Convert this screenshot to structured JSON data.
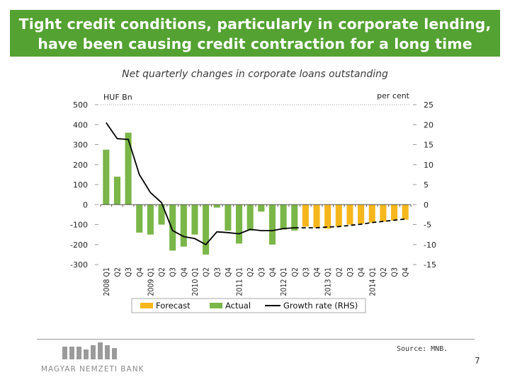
{
  "slide": {
    "title_line1": "Tight credit conditions, particularly in corporate lending,",
    "title_line2": "have been causing credit contraction for a long time",
    "chart_title": "Net quarterly changes in corporate loans outstanding",
    "source": "Source: MNB.",
    "page_number": "7",
    "bank_name": "MAGYAR NEMZETI BANK"
  },
  "colors": {
    "title_bg": "#54a232",
    "actual": "#7ab648",
    "forecast": "#f5b71b",
    "growth_line": "#000000"
  },
  "chart_data": {
    "type": "bar",
    "left_axis_unit": "HUF Bn",
    "right_axis_unit": "per cent",
    "ylim": [
      -300,
      500
    ],
    "y2lim": [
      -15,
      25
    ],
    "yticks": [
      "500",
      "400",
      "300",
      "200",
      "100",
      "0",
      "-100",
      "-200",
      "-300"
    ],
    "y2ticks": [
      "25",
      "20",
      "15",
      "10",
      "5",
      "0",
      "-5",
      "-10",
      "-15"
    ],
    "categories": [
      "2008 Q1",
      "Q2",
      "Q3",
      "Q4",
      "2009 Q1",
      "Q2",
      "Q3",
      "Q4",
      "2010 Q1",
      "Q2",
      "Q3",
      "Q4",
      "2011 Q1",
      "Q2",
      "Q3",
      "Q4",
      "2012 Q1",
      "Q2",
      "Q3",
      "Q4",
      "2013 Q1",
      "Q2",
      "Q3",
      "Q4",
      "2014 Q1",
      "Q2",
      "Q3",
      "Q4"
    ],
    "series": [
      {
        "name": "Actual",
        "type": "bar",
        "values": [
          275,
          140,
          360,
          -140,
          -150,
          -100,
          -230,
          -210,
          -150,
          -250,
          -15,
          -130,
          -195,
          -130,
          -35,
          -200,
          -125,
          -130,
          null,
          null,
          null,
          null,
          null,
          null,
          null,
          null,
          null,
          null
        ]
      },
      {
        "name": "Forecast",
        "type": "bar",
        "values": [
          null,
          null,
          null,
          null,
          null,
          null,
          null,
          null,
          null,
          null,
          null,
          null,
          null,
          null,
          null,
          null,
          null,
          null,
          -110,
          -115,
          -120,
          -110,
          -100,
          -95,
          -90,
          -85,
          -80,
          -75
        ]
      },
      {
        "name": "Growth rate (RHS)",
        "type": "line",
        "axis": "right",
        "values": [
          20.5,
          16.5,
          16.3,
          7.5,
          3,
          0.5,
          -6.5,
          -8,
          -8.5,
          -10,
          -6.8,
          -7,
          -7.3,
          -6.2,
          -6.5,
          -6.5,
          -6,
          -5.8,
          -5.8,
          -5.8,
          -5.6,
          -5.5,
          -5.2,
          -4.9,
          -4.5,
          -4.2,
          -3.9,
          -3.6
        ],
        "forecast_from_index": 18
      }
    ],
    "legend": {
      "position": "bottom",
      "entries": [
        "Forecast",
        "Actual",
        "Growth rate (RHS)"
      ]
    }
  }
}
